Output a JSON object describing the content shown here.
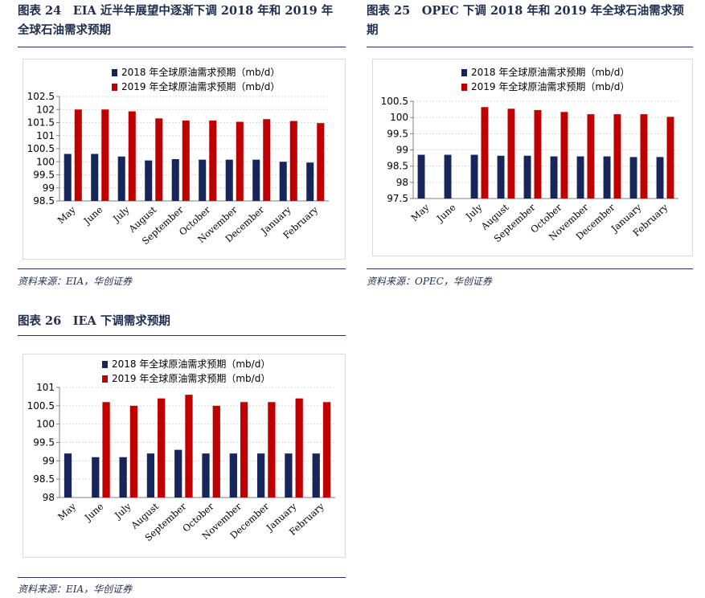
{
  "figures": [
    {
      "title_line1": "图表 24　EIA 近半年展望中逐渐下调 2018 年和 2019 年",
      "title_line2": "全球石油需求预期",
      "source": "资料来源：EIA，华创证券",
      "colors": {
        "s2018": "#17265a",
        "s2019": "#c00000"
      }
    },
    {
      "title_line1": "图表 25　OPEC 下调 2018 年和 2019 年全球石油需求预",
      "title_line2": "期",
      "source": "资料来源：OPEC，华创证券",
      "colors": {
        "s2018": "#17265a",
        "s2019": "#c00000"
      }
    },
    {
      "title_line1": "图表 26　IEA 下调需求预期",
      "title_line2": "",
      "source": "资料来源：EIA，华创证券",
      "colors": {
        "s2018": "#17265a",
        "s2019": "#c00000"
      }
    }
  ],
  "chart_data": [
    {
      "type": "bar",
      "categories": [
        "May",
        "June",
        "July",
        "August",
        "September",
        "October",
        "November",
        "December",
        "January",
        "February"
      ],
      "series": [
        {
          "name": "2018 年全球原油需求预期（mb/d）",
          "values": [
            100.3,
            100.3,
            100.2,
            100.05,
            100.1,
            100.08,
            100.08,
            100.08,
            100.0,
            99.97
          ]
        },
        {
          "name": "2019 年全球原油需求预期（mb/d）",
          "values": [
            102.0,
            102.0,
            101.93,
            101.66,
            101.58,
            101.58,
            101.53,
            101.63,
            101.56,
            101.48
          ]
        }
      ],
      "yticks": [
        "98.5",
        "99",
        "99.5",
        "100",
        "100.5",
        "101",
        "101.5",
        "102",
        "102.5"
      ],
      "ylim": [
        98.5,
        102.5
      ],
      "grid": true,
      "legend": "top"
    },
    {
      "type": "bar",
      "categories": [
        "May",
        "June",
        "July",
        "August",
        "September",
        "October",
        "November",
        "December",
        "January",
        "February"
      ],
      "series": [
        {
          "name": "2018 年全球原油需求预期（mb/d）",
          "values": [
            98.85,
            98.85,
            98.85,
            98.82,
            98.82,
            98.8,
            98.8,
            98.8,
            98.78,
            98.78
          ]
        },
        {
          "name": "2019 年全球原油需求预期（mb/d）",
          "values": [
            null,
            null,
            100.32,
            100.27,
            100.23,
            100.17,
            100.1,
            100.1,
            100.1,
            100.02
          ]
        }
      ],
      "yticks": [
        "97.5",
        "98",
        "98.5",
        "99",
        "99.5",
        "100",
        "100.5"
      ],
      "ylim": [
        97.5,
        100.5
      ],
      "grid": true,
      "legend": "top"
    },
    {
      "type": "bar",
      "categories": [
        "May",
        "June",
        "July",
        "August",
        "September",
        "October",
        "November",
        "December",
        "January",
        "February"
      ],
      "series": [
        {
          "name": "2018 年全球原油需求预期（mb/d）",
          "values": [
            99.2,
            99.1,
            99.1,
            99.2,
            99.3,
            99.2,
            99.2,
            99.2,
            99.2,
            99.2
          ]
        },
        {
          "name": "2019 年全球原油需求预期（mb/d）",
          "values": [
            null,
            100.6,
            100.5,
            100.7,
            100.8,
            100.5,
            100.6,
            100.6,
            100.7,
            100.6
          ]
        }
      ],
      "yticks": [
        "98",
        "98.5",
        "99",
        "99.5",
        "100",
        "100.5",
        "101"
      ],
      "ylim": [
        98,
        101
      ],
      "grid": true,
      "legend": "top"
    }
  ]
}
